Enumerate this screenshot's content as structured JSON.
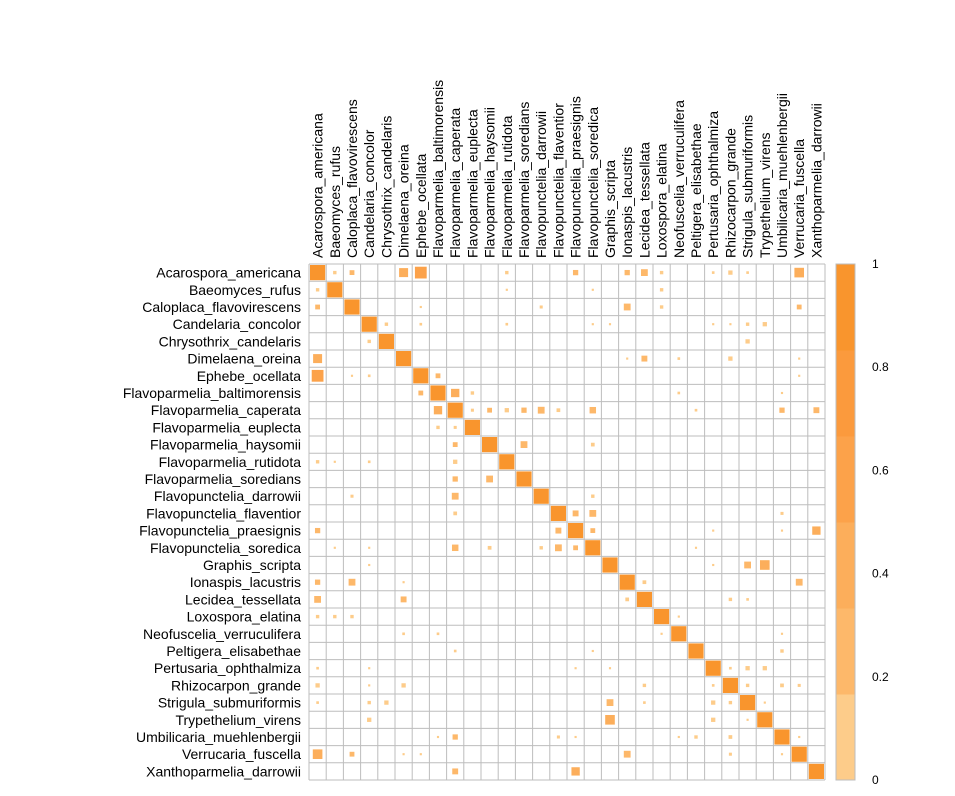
{
  "chart_data": {
    "type": "heatmap",
    "title": "",
    "variables": [
      "Acarospora_americana",
      "Baeomyces_rufus",
      "Caloplaca_flavovirescens",
      "Candelaria_concolor",
      "Chrysothrix_candelaris",
      "Dimelaena_oreina",
      "Ephebe_ocellata",
      "Flavoparmelia_baltimorensis",
      "Flavoparmelia_caperata",
      "Flavoparmelia_euplecta",
      "Flavoparmelia_haysomii",
      "Flavoparmelia_rutidota",
      "Flavoparmelia_soredians",
      "Flavopunctelia_darrowii",
      "Flavopunctelia_flaventior",
      "Flavopunctelia_praesignis",
      "Flavopunctelia_soredica",
      "Graphis_scripta",
      "Ionaspis_lacustris",
      "Lecidea_tessellata",
      "Loxospora_elatina",
      "Neofuscelia_verruculifera",
      "Peltigera_elisabethae",
      "Pertusaria_ophthalmiza",
      "Rhizocarpon_grande",
      "Strigula_submuriformis",
      "Trypethelium_virens",
      "Umbilicaria_muehlenbergii",
      "Verrucaria_fuscella",
      "Xanthoparmelia_darrowii"
    ],
    "diagonal": 1,
    "cells": [
      [
        0,
        1,
        0.05
      ],
      [
        0,
        2,
        0.1
      ],
      [
        0,
        5,
        0.35
      ],
      [
        0,
        6,
        0.6
      ],
      [
        0,
        11,
        0.05
      ],
      [
        0,
        15,
        0.12
      ],
      [
        0,
        18,
        0.12
      ],
      [
        0,
        19,
        0.2
      ],
      [
        0,
        20,
        0.05
      ],
      [
        0,
        23,
        0.03
      ],
      [
        0,
        24,
        0.08
      ],
      [
        0,
        25,
        0.03
      ],
      [
        0,
        28,
        0.4
      ],
      [
        1,
        11,
        0.02
      ],
      [
        1,
        16,
        0.02
      ],
      [
        1,
        20,
        0.05
      ],
      [
        2,
        6,
        0.02
      ],
      [
        2,
        13,
        0.04
      ],
      [
        2,
        18,
        0.2
      ],
      [
        2,
        20,
        0.05
      ],
      [
        2,
        28,
        0.1
      ],
      [
        3,
        4,
        0.05
      ],
      [
        3,
        6,
        0.03
      ],
      [
        3,
        11,
        0.03
      ],
      [
        3,
        16,
        0.02
      ],
      [
        3,
        17,
        0.02
      ],
      [
        3,
        23,
        0.02
      ],
      [
        3,
        24,
        0.02
      ],
      [
        3,
        25,
        0.05
      ],
      [
        3,
        26,
        0.08
      ],
      [
        4,
        25,
        0.08
      ],
      [
        5,
        18,
        0.02
      ],
      [
        5,
        19,
        0.15
      ],
      [
        5,
        21,
        0.03
      ],
      [
        5,
        24,
        0.08
      ],
      [
        5,
        28,
        0.02
      ],
      [
        6,
        7,
        0.1
      ],
      [
        6,
        28,
        0.02
      ],
      [
        7,
        8,
        0.3
      ],
      [
        7,
        9,
        0.05
      ],
      [
        7,
        21,
        0.03
      ],
      [
        7,
        27,
        0.02
      ],
      [
        8,
        9,
        0.04
      ],
      [
        8,
        10,
        0.1
      ],
      [
        8,
        11,
        0.08
      ],
      [
        8,
        12,
        0.12
      ],
      [
        8,
        13,
        0.2
      ],
      [
        8,
        14,
        0.06
      ],
      [
        8,
        16,
        0.18
      ],
      [
        8,
        22,
        0.03
      ],
      [
        8,
        27,
        0.12
      ],
      [
        8,
        29,
        0.15
      ],
      [
        10,
        12,
        0.2
      ],
      [
        10,
        16,
        0.06
      ],
      [
        13,
        16,
        0.05
      ],
      [
        14,
        15,
        0.15
      ],
      [
        14,
        16,
        0.2
      ],
      [
        14,
        27,
        0.04
      ],
      [
        15,
        16,
        0.1
      ],
      [
        15,
        23,
        0.02
      ],
      [
        15,
        27,
        0.02
      ],
      [
        15,
        29,
        0.3
      ],
      [
        16,
        22,
        0.02
      ],
      [
        17,
        23,
        0.02
      ],
      [
        17,
        25,
        0.2
      ],
      [
        17,
        26,
        0.4
      ],
      [
        18,
        19,
        0.06
      ],
      [
        18,
        28,
        0.2
      ],
      [
        19,
        24,
        0.05
      ],
      [
        19,
        25,
        0.03
      ],
      [
        20,
        21,
        0.02
      ],
      [
        21,
        27,
        0.02
      ],
      [
        22,
        27,
        0.05
      ],
      [
        23,
        24,
        0.03
      ],
      [
        23,
        25,
        0.08
      ],
      [
        23,
        26,
        0.08
      ],
      [
        24,
        25,
        0.05
      ],
      [
        24,
        27,
        0.06
      ],
      [
        24,
        28,
        0.04
      ],
      [
        25,
        26,
        0.02
      ],
      [
        27,
        28,
        0.02
      ]
    ],
    "color_scale": {
      "min": 0,
      "max": 1,
      "ticks": [
        "0",
        "0.2",
        "0.4",
        "0.6",
        "0.8",
        "1"
      ],
      "colors": [
        "#fdcc8a",
        "#fdb86a",
        "#fcae5b",
        "#fca24a",
        "#fb9a3d",
        "#f9952d"
      ]
    }
  }
}
